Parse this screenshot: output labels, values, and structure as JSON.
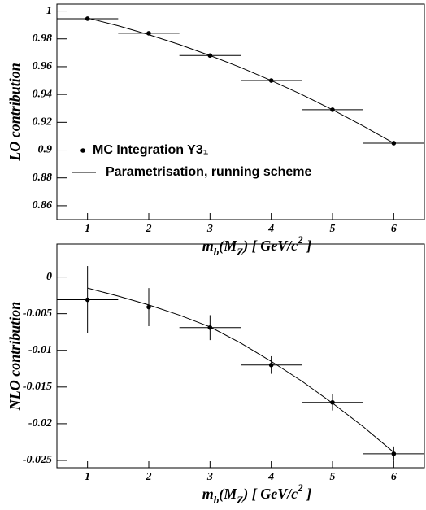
{
  "chart_data": [
    {
      "type": "line",
      "y_label": "LO contribution",
      "x_label": "m_b(M_Z) [ GeV/c^2 ]",
      "xlim": [
        0.5,
        6.5
      ],
      "xticks": [
        1,
        2,
        3,
        4,
        5,
        6
      ],
      "ylim": [
        0.85,
        1.005
      ],
      "yticks": [
        0.86,
        0.88,
        0.9,
        0.92,
        0.94,
        0.96,
        0.98,
        1
      ],
      "legend": "left",
      "series": [
        {
          "name": "MC Integration  Y3₁",
          "color": "#000000",
          "marker": "dot",
          "x": [
            1,
            2,
            3,
            4,
            5,
            6
          ],
          "values": [
            0.9945,
            0.984,
            0.968,
            0.95,
            0.929,
            0.905
          ],
          "xerr": [
            0.5,
            0.5,
            0.5,
            0.5,
            0.5,
            0.5
          ]
        },
        {
          "name": "Parametrisation, running scheme",
          "color": "#000000",
          "x": [
            1,
            1.5,
            2,
            2.5,
            3,
            3.5,
            4,
            4.5,
            5,
            5.5,
            6
          ],
          "values": [
            0.995,
            0.9894,
            0.983,
            0.9759,
            0.968,
            0.9594,
            0.95,
            0.9399,
            0.929,
            0.9174,
            0.905
          ]
        }
      ]
    },
    {
      "type": "line",
      "y_label": "NLO contribution",
      "x_label": "m_b(M_Z) [ GeV/c^2 ]",
      "xlim": [
        0.5,
        6.5
      ],
      "xticks": [
        1,
        2,
        3,
        4,
        5,
        6
      ],
      "ylim": [
        -0.026,
        0.0045
      ],
      "yticks": [
        0,
        -0.005,
        -0.01,
        -0.015,
        -0.02,
        -0.025
      ],
      "series": [
        {
          "color": "#000000",
          "marker": "dot",
          "x": [
            1,
            2,
            3,
            4,
            5,
            6
          ],
          "values": [
            -0.0031,
            -0.0041,
            -0.0069,
            -0.012,
            -0.0171,
            -0.0241
          ],
          "xerr": [
            0.5,
            0.5,
            0.5,
            0.5,
            0.5,
            0.5
          ],
          "yerr": [
            0.0046,
            0.0026,
            0.0017,
            0.0012,
            0.0011,
            0.001
          ]
        },
        {
          "color": "#000000",
          "x": [
            1,
            1.5,
            2,
            2.5,
            3,
            3.5,
            4,
            4.5,
            5,
            5.5,
            6
          ],
          "values": [
            -0.0015,
            -0.0026,
            -0.0038,
            -0.0052,
            -0.0068,
            -0.009,
            -0.0115,
            -0.0142,
            -0.0172,
            -0.0204,
            -0.0239
          ]
        }
      ]
    }
  ]
}
